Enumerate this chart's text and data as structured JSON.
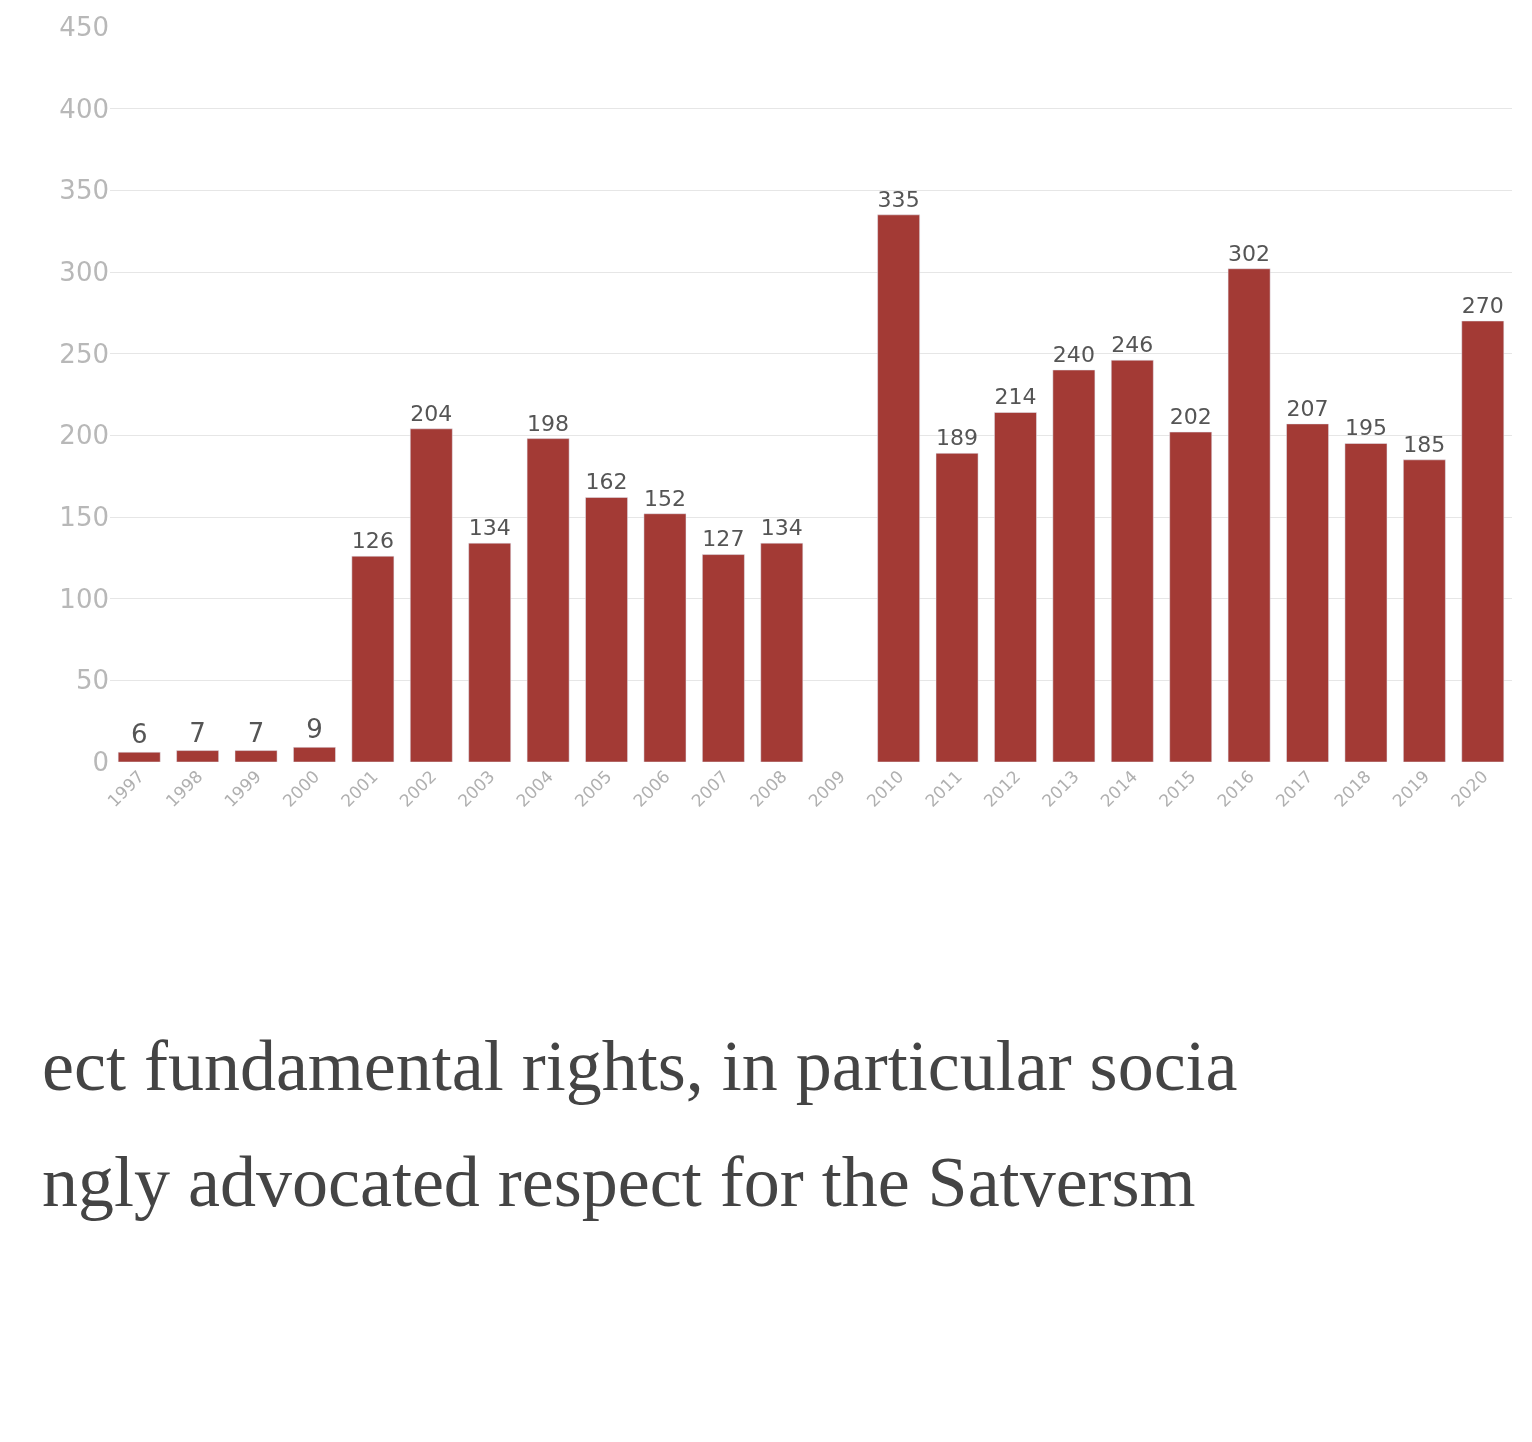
{
  "chart_data": {
    "type": "bar",
    "categories": [
      "1997",
      "1998",
      "1999",
      "2000",
      "2001",
      "2002",
      "2003",
      "2004",
      "2005",
      "2006",
      "2007",
      "2008",
      "2009",
      "2010",
      "2011",
      "2012",
      "2013",
      "2014",
      "2015",
      "2016",
      "2017",
      "2018",
      "2019",
      "2020"
    ],
    "values": [
      6,
      7,
      7,
      9,
      126,
      204,
      134,
      198,
      162,
      152,
      127,
      134,
      null,
      335,
      189,
      214,
      240,
      246,
      202,
      302,
      207,
      195,
      185,
      270
    ],
    "color": "#a33a35",
    "data_labels": true,
    "ylim": [
      0,
      450
    ],
    "yticks": [
      0,
      50,
      100,
      150,
      200,
      250,
      300,
      350,
      400,
      450
    ],
    "grid": "y",
    "annotations": [
      "ect fundamental rights, in particular socia",
      "ngly advocated respect for the Satversm"
    ]
  }
}
